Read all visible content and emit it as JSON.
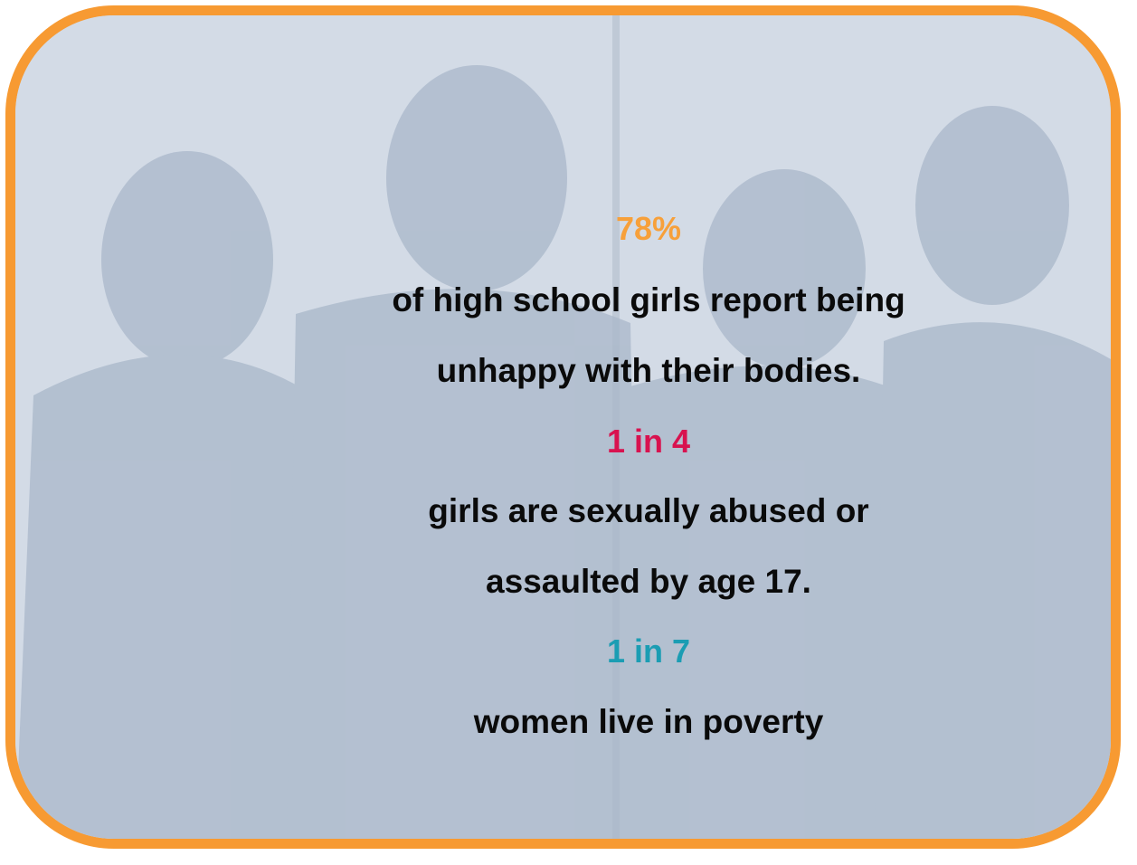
{
  "stats": [
    {
      "highlight": "78%",
      "color": "#f7a03a",
      "lines": [
        "of high school girls report being",
        "unhappy with their bodies."
      ]
    },
    {
      "highlight": "1 in 4",
      "color": "#d8124f",
      "lines": [
        "girls are sexually abused or",
        "assaulted by age 17."
      ]
    },
    {
      "highlight": "1 in 7",
      "color": "#1b9db3",
      "lines": [
        "women live in poverty"
      ]
    }
  ]
}
